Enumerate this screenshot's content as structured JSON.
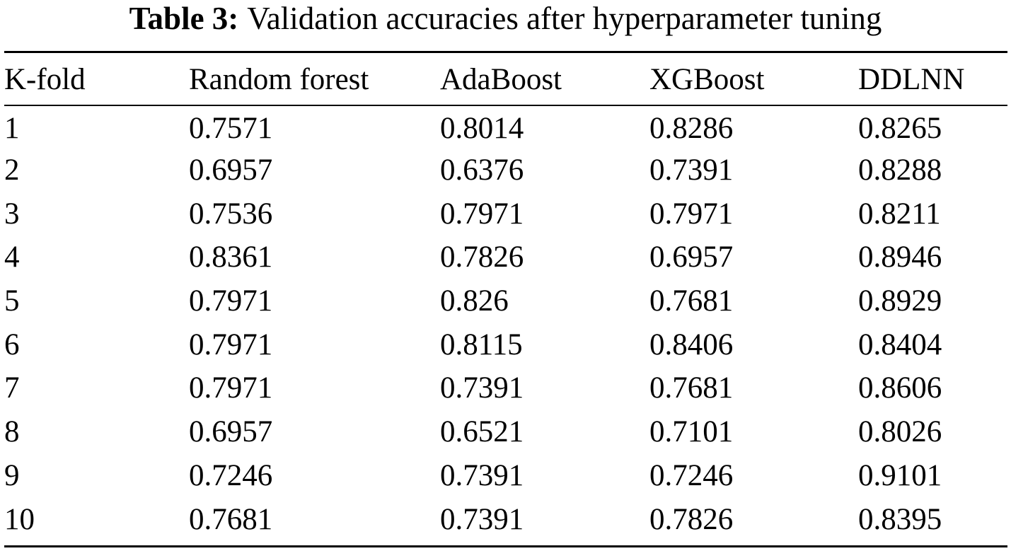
{
  "caption": {
    "label": "Table 3:",
    "text": "Validation accuracies after hyperparameter tuning"
  },
  "table": {
    "headers": [
      "K-fold",
      "Random forest",
      "AdaBoost",
      "XGBoost",
      "DDLNN"
    ],
    "rows": [
      [
        "1",
        "0.7571",
        "0.8014",
        "0.8286",
        "0.8265"
      ],
      [
        "2",
        "0.6957",
        "0.6376",
        "0.7391",
        "0.8288"
      ],
      [
        "3",
        "0.7536",
        "0.7971",
        "0.7971",
        "0.8211"
      ],
      [
        "4",
        "0.8361",
        "0.7826",
        "0.6957",
        "0.8946"
      ],
      [
        "5",
        "0.7971",
        "0.826",
        "0.7681",
        "0.8929"
      ],
      [
        "6",
        "0.7971",
        "0.8115",
        "0.8406",
        "0.8404"
      ],
      [
        "7",
        "0.7971",
        "0.7391",
        "0.7681",
        "0.8606"
      ],
      [
        "8",
        "0.6957",
        "0.6521",
        "0.7101",
        "0.8026"
      ],
      [
        "9",
        "0.7246",
        "0.7391",
        "0.7246",
        "0.9101"
      ],
      [
        "10",
        "0.7681",
        "0.7391",
        "0.7826",
        "0.8395"
      ]
    ]
  }
}
